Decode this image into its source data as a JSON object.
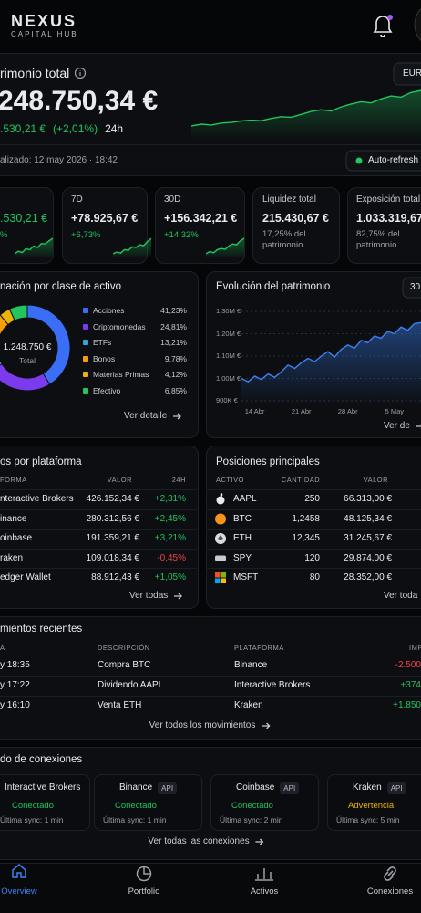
{
  "header": {
    "brand": "NEXUS",
    "tagline": "CAPITAL HUB"
  },
  "overview": {
    "title": "rimonio total",
    "currency": "EUR",
    "total": "248.750,34 €",
    "change": ".530,21 €",
    "change_pct": "(+2,01%)",
    "period": "24h",
    "updated": "alizado: 12 may 2026 · 18:42",
    "auto_refresh": "Auto-refresh",
    "trend": {
      "values": [
        1218000,
        1219500,
        1218800,
        1220500,
        1221000,
        1222300,
        1223000,
        1222500,
        1224500,
        1226000,
        1225500,
        1228000,
        1230500,
        1232000,
        1231000,
        1234500,
        1237000,
        1239000,
        1238000,
        1241500,
        1244000,
        1243000,
        1247000,
        1248750
      ],
      "ylim": [
        1210000,
        1252000
      ],
      "color": "#22c55e"
    }
  },
  "periods": [
    {
      "value": ".530,21 €",
      "change": "%",
      "spark": [
        2,
        3,
        2.5,
        4,
        3.6,
        5,
        4.4,
        6,
        5.8,
        7,
        8
      ]
    },
    {
      "label": "7D",
      "value": "+78.925,67 €",
      "change": "+6,73%",
      "spark": [
        3,
        3.5,
        3.2,
        4.2,
        4,
        5,
        4.8,
        5.6,
        5.3,
        6.5,
        7.4
      ]
    },
    {
      "label": "30D",
      "value": "+156.342,21 €",
      "change": "+14,32%",
      "spark": [
        2,
        2.8,
        2.4,
        3.5,
        3.9,
        3.6,
        4.8,
        5.5,
        5.2,
        6.6,
        7.5
      ]
    }
  ],
  "totals": [
    {
      "label": "Liquidez total",
      "value": "215.430,67 €",
      "note": "17,25% del patrimonio"
    },
    {
      "label": "Exposición total",
      "value": "1.033.319,67",
      "note": "82,75% del patrimonio"
    }
  ],
  "allocation": {
    "title": "nación por clase de activo",
    "center_value": "1.248.750 €",
    "center_label": "Total",
    "link": "Ver detalle",
    "items": [
      {
        "name": "Acciones",
        "value": 41.23,
        "label": "41,23%",
        "color": "#3b6ef6"
      },
      {
        "name": "Criptomonedas",
        "value": 24.81,
        "label": "24,81%",
        "color": "#7c3aed"
      },
      {
        "name": "ETFs",
        "value": 13.21,
        "label": "13,21%",
        "color": "#2fa6d8"
      },
      {
        "name": "Bonos",
        "value": 9.78,
        "label": "9,78%",
        "color": "#f59e0b"
      },
      {
        "name": "Materias Primas",
        "value": 4.12,
        "label": "4,12%",
        "color": "#eab308"
      },
      {
        "name": "Efectivo",
        "value": 6.85,
        "label": "6,85%",
        "color": "#22c55e"
      }
    ]
  },
  "evolution": {
    "title": "Evolución del patrimonio",
    "range": "30",
    "link": "Ver de",
    "color": "#3b82f6",
    "ylim": [
      900000,
      1300000
    ],
    "yticks": [
      {
        "value": 1300000,
        "label": "1,30M €"
      },
      {
        "value": 1200000,
        "label": "1,20M €"
      },
      {
        "value": 1100000,
        "label": "1,10M €"
      },
      {
        "value": 1000000,
        "label": "1,00M €"
      },
      {
        "value": 900000,
        "label": "900K €"
      }
    ],
    "categories": [
      null,
      null,
      "14 Abr",
      null,
      null,
      null,
      null,
      null,
      null,
      "21 Abr",
      null,
      null,
      null,
      null,
      null,
      null,
      "28 Abr",
      null,
      null,
      null,
      null,
      null,
      null,
      "5 May",
      null,
      null,
      null,
      null
    ],
    "values": [
      1000000,
      985000,
      1010000,
      995000,
      1020000,
      1005000,
      1030000,
      1060000,
      1045000,
      1070000,
      1090000,
      1075000,
      1100000,
      1120000,
      1095000,
      1130000,
      1150000,
      1135000,
      1170000,
      1160000,
      1190000,
      1180000,
      1210000,
      1200000,
      1230000,
      1215000,
      1245000,
      1250000
    ]
  },
  "platforms": {
    "title": "os por plataforma",
    "columns": [
      "FORMA",
      "VALOR",
      "24H"
    ],
    "link": "Ver todas",
    "rows": [
      [
        "nteractive Brokers",
        "426.152,34 €",
        "+2,31%"
      ],
      [
        "inance",
        "280.312,56 €",
        "+2,45%"
      ],
      [
        "oinbase",
        "191.359,21 €",
        "+3,21%"
      ],
      [
        "raken",
        "109.018,34 €",
        "-0,45%"
      ],
      [
        "edger Wallet",
        "88.912,43 €",
        "+1,05%"
      ]
    ]
  },
  "positions": {
    "title": "Posiciones principales",
    "columns": [
      "ACTIVO",
      "CANTIDAD",
      "VALOR"
    ],
    "link": "Ver toda",
    "rows": [
      [
        "AAPL",
        "250",
        "66.313,00 €"
      ],
      [
        "BTC",
        "1,2458",
        "48.125,34 €"
      ],
      [
        "ETH",
        "12,345",
        "31.245,67 €"
      ],
      [
        "SPY",
        "120",
        "29.874,00 €"
      ],
      [
        "MSFT",
        "80",
        "28.352,00 €"
      ]
    ]
  },
  "movements": {
    "title": "mientos recientes",
    "columns": [
      "A",
      "DESCRIPCIÓN",
      "PLATAFORMA",
      "IMP"
    ],
    "link": "Ver todos los movimientos",
    "rows": [
      [
        "y 18:35",
        "Compra BTC",
        "Binance",
        "-2.500"
      ],
      [
        "y 17:22",
        "Dividendo AAPL",
        "Interactive Brokers",
        "+374"
      ],
      [
        "y 16:10",
        "Venta ETH",
        "Kraken",
        "+1.850"
      ]
    ]
  },
  "connections": {
    "title": "do de conexiones",
    "link": "Ver todas las conexiones",
    "items": [
      {
        "name": "Interactive Brokers",
        "status": "Conectado",
        "sync": "Última sync: 1 min",
        "status_color": "#22c55e"
      },
      {
        "name": "Binance",
        "badge": "API",
        "status": "Conectado",
        "sync": "Última sync: 1 min",
        "status_color": "#22c55e"
      },
      {
        "name": "Coinbase",
        "badge": "API",
        "status": "Conectado",
        "sync": "Última sync: 2 min",
        "status_color": "#22c55e"
      },
      {
        "name": "Kraken",
        "badge": "API",
        "status": "Advertencia",
        "sync": "Última sync: 5 min",
        "status_color": "#eab308"
      }
    ]
  },
  "nav": [
    "Overview",
    "Portfolio",
    "Activos",
    "Conexiones"
  ]
}
